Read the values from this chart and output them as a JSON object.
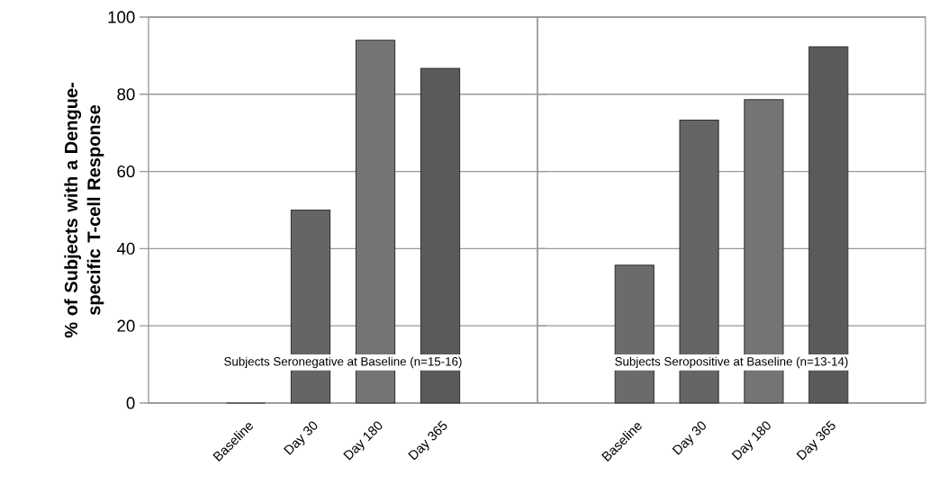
{
  "chart_data": [
    {
      "type": "bar",
      "ylabel": "% of Subjects with a Dengue-specific T-cell Response",
      "categories": [
        "Baseline",
        "Day 30",
        "Day 180",
        "Day 365"
      ],
      "values": [
        0,
        50,
        94,
        86.7
      ],
      "colors": [
        "#6b6b6b",
        "#656565",
        "#747474",
        "#5a5a5a"
      ],
      "ylim": [
        0,
        100
      ],
      "yticks": [
        0,
        20,
        40,
        60,
        80,
        100
      ],
      "grid": "y",
      "annotations": [
        "Subjects Seronegative at Baseline (n=15-16)"
      ]
    },
    {
      "type": "bar",
      "categories": [
        "Baseline",
        "Day 30",
        "Day 180",
        "Day 365"
      ],
      "values": [
        35.7,
        73.3,
        78.6,
        92.3
      ],
      "colors": [
        "#6b6b6b",
        "#656565",
        "#747474",
        "#5a5a5a"
      ],
      "ylim": [
        0,
        100
      ],
      "yticks": [
        0,
        20,
        40,
        60,
        80,
        100
      ],
      "grid": "y",
      "tick_labels": "x",
      "annotations": [
        "Subjects Seropositive at Baseline (n=13-14)"
      ]
    }
  ]
}
